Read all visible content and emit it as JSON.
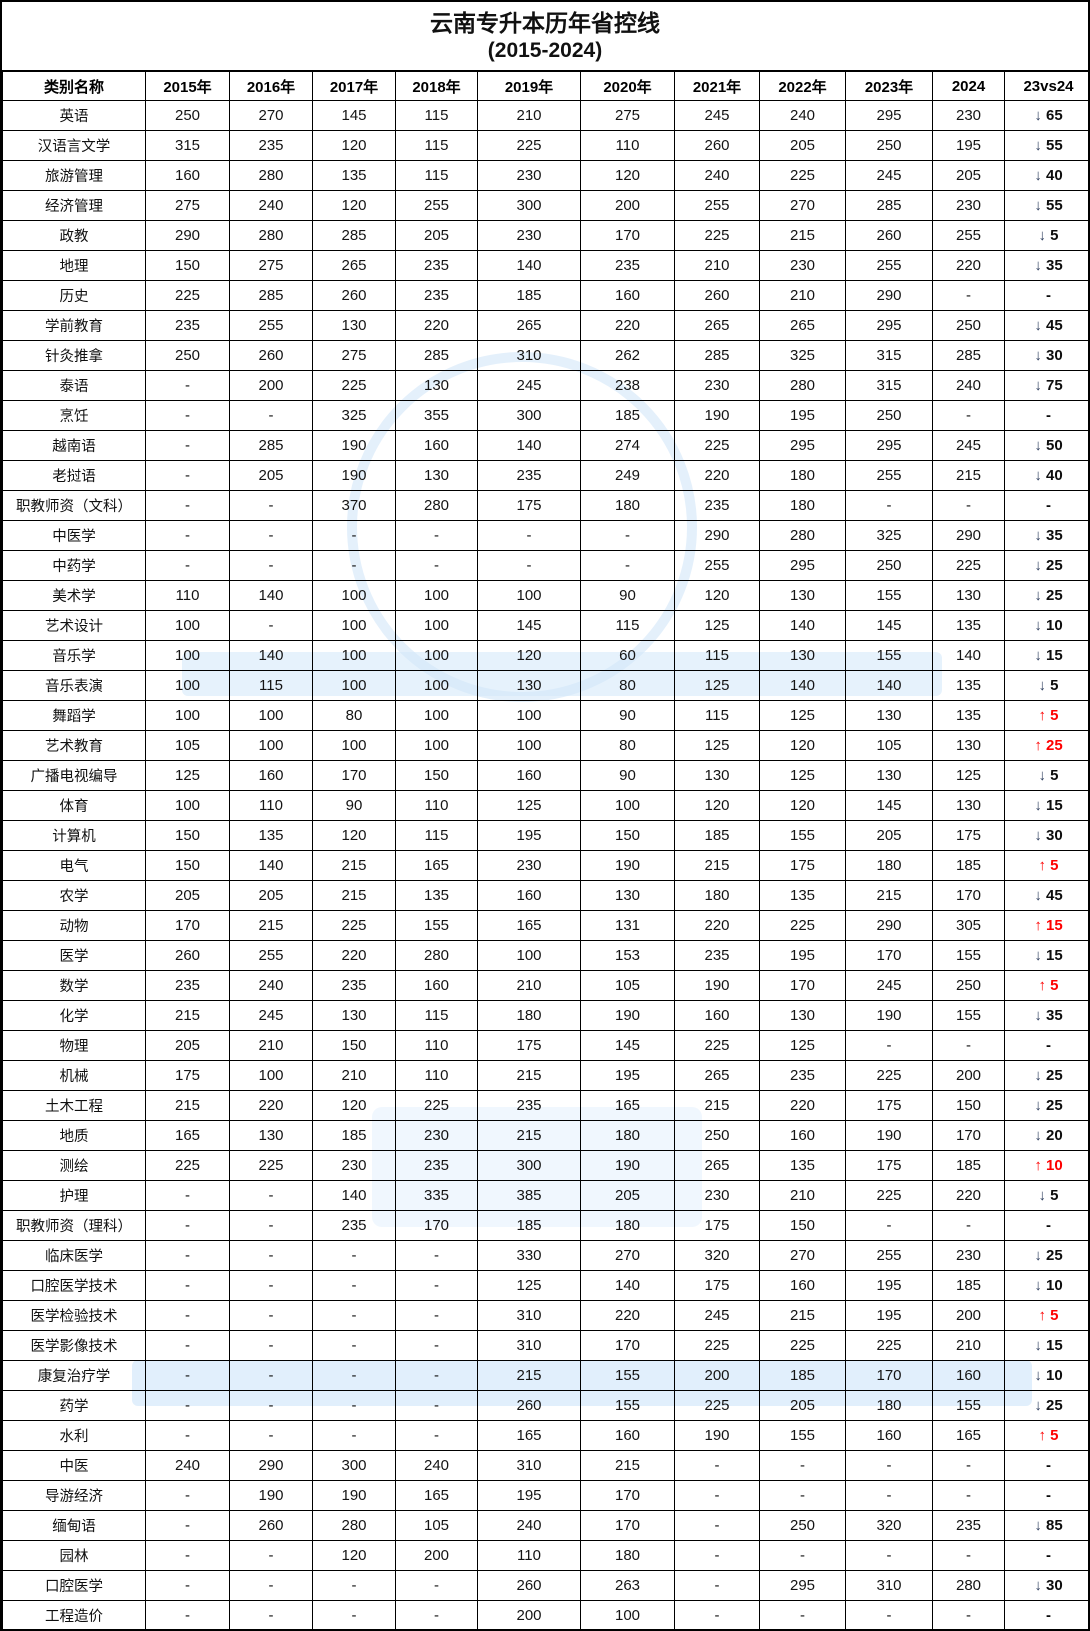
{
  "title": {
    "line1": "云南专升本历年省控线",
    "line2": "(2015-2024)"
  },
  "colors": {
    "up_red": "#fe0000",
    "text": "#141414",
    "border": "#000000",
    "watermark_blue": "#cde4f7"
  },
  "icons": {
    "up_arrow": "↑",
    "down_arrow": "↓"
  },
  "table": {
    "columns": [
      "类别名称",
      "2015年",
      "2016年",
      "2017年",
      "2018年",
      "2019年",
      "2020年",
      "2021年",
      "2022年",
      "2023年",
      "2024",
      "23vs24"
    ],
    "rows": [
      {
        "name": "英语",
        "values": [
          "250",
          "270",
          "145",
          "115",
          "210",
          "275",
          "245",
          "240",
          "295",
          "230"
        ],
        "delta": "65",
        "trend": "down"
      },
      {
        "name": "汉语言文学",
        "values": [
          "315",
          "235",
          "120",
          "115",
          "225",
          "110",
          "260",
          "205",
          "250",
          "195"
        ],
        "delta": "55",
        "trend": "down"
      },
      {
        "name": "旅游管理",
        "values": [
          "160",
          "280",
          "135",
          "115",
          "230",
          "120",
          "240",
          "225",
          "245",
          "205"
        ],
        "delta": "40",
        "trend": "down"
      },
      {
        "name": "经济管理",
        "values": [
          "275",
          "240",
          "120",
          "255",
          "300",
          "200",
          "255",
          "270",
          "285",
          "230"
        ],
        "delta": "55",
        "trend": "down"
      },
      {
        "name": "政教",
        "values": [
          "290",
          "280",
          "285",
          "205",
          "230",
          "170",
          "225",
          "215",
          "260",
          "255"
        ],
        "delta": "5",
        "trend": "down"
      },
      {
        "name": "地理",
        "values": [
          "150",
          "275",
          "265",
          "235",
          "140",
          "235",
          "210",
          "230",
          "255",
          "220"
        ],
        "delta": "35",
        "trend": "down"
      },
      {
        "name": "历史",
        "values": [
          "225",
          "285",
          "260",
          "235",
          "185",
          "160",
          "260",
          "210",
          "290",
          "-"
        ],
        "delta": "-",
        "trend": "none"
      },
      {
        "name": "学前教育",
        "values": [
          "235",
          "255",
          "130",
          "220",
          "265",
          "220",
          "265",
          "265",
          "295",
          "250"
        ],
        "delta": "45",
        "trend": "down"
      },
      {
        "name": "针灸推拿",
        "values": [
          "250",
          "260",
          "275",
          "285",
          "310",
          "262",
          "285",
          "325",
          "315",
          "285"
        ],
        "delta": "30",
        "trend": "down"
      },
      {
        "name": "泰语",
        "values": [
          "-",
          "200",
          "225",
          "130",
          "245",
          "238",
          "230",
          "280",
          "315",
          "240"
        ],
        "delta": "75",
        "trend": "down"
      },
      {
        "name": "烹饪",
        "values": [
          "-",
          "-",
          "325",
          "355",
          "300",
          "185",
          "190",
          "195",
          "250",
          "-"
        ],
        "delta": "-",
        "trend": "none"
      },
      {
        "name": "越南语",
        "values": [
          "-",
          "285",
          "190",
          "160",
          "140",
          "274",
          "225",
          "295",
          "295",
          "245"
        ],
        "delta": "50",
        "trend": "down"
      },
      {
        "name": "老挝语",
        "values": [
          "-",
          "205",
          "190",
          "130",
          "235",
          "249",
          "220",
          "180",
          "255",
          "215"
        ],
        "delta": "40",
        "trend": "down"
      },
      {
        "name": "职教师资（文科）",
        "values": [
          "-",
          "-",
          "370",
          "280",
          "175",
          "180",
          "235",
          "180",
          "-",
          "-"
        ],
        "delta": "-",
        "trend": "none"
      },
      {
        "name": "中医学",
        "values": [
          "-",
          "-",
          "-",
          "-",
          "-",
          "-",
          "290",
          "280",
          "325",
          "290"
        ],
        "delta": "35",
        "trend": "down"
      },
      {
        "name": "中药学",
        "values": [
          "-",
          "-",
          "-",
          "-",
          "-",
          "-",
          "255",
          "295",
          "250",
          "225"
        ],
        "delta": "25",
        "trend": "down"
      },
      {
        "name": "美术学",
        "values": [
          "110",
          "140",
          "100",
          "100",
          "100",
          "90",
          "120",
          "130",
          "155",
          "130"
        ],
        "delta": "25",
        "trend": "down"
      },
      {
        "name": "艺术设计",
        "values": [
          "100",
          "-",
          "100",
          "100",
          "145",
          "115",
          "125",
          "140",
          "145",
          "135"
        ],
        "delta": "10",
        "trend": "down"
      },
      {
        "name": "音乐学",
        "values": [
          "100",
          "140",
          "100",
          "100",
          "120",
          "60",
          "115",
          "130",
          "155",
          "140"
        ],
        "delta": "15",
        "trend": "down"
      },
      {
        "name": "音乐表演",
        "values": [
          "100",
          "115",
          "100",
          "100",
          "130",
          "80",
          "125",
          "140",
          "140",
          "135"
        ],
        "delta": "5",
        "trend": "down"
      },
      {
        "name": "舞蹈学",
        "values": [
          "100",
          "100",
          "80",
          "100",
          "100",
          "90",
          "115",
          "125",
          "130",
          "135"
        ],
        "delta": "5",
        "trend": "up"
      },
      {
        "name": "艺术教育",
        "values": [
          "105",
          "100",
          "100",
          "100",
          "100",
          "80",
          "125",
          "120",
          "105",
          "130"
        ],
        "delta": "25",
        "trend": "up"
      },
      {
        "name": "广播电视编导",
        "values": [
          "125",
          "160",
          "170",
          "150",
          "160",
          "90",
          "130",
          "125",
          "130",
          "125"
        ],
        "delta": "5",
        "trend": "down"
      },
      {
        "name": "体育",
        "values": [
          "100",
          "110",
          "90",
          "110",
          "125",
          "100",
          "120",
          "120",
          "145",
          "130"
        ],
        "delta": "15",
        "trend": "down"
      },
      {
        "name": "计算机",
        "values": [
          "150",
          "135",
          "120",
          "115",
          "195",
          "150",
          "185",
          "155",
          "205",
          "175"
        ],
        "delta": "30",
        "trend": "down"
      },
      {
        "name": "电气",
        "values": [
          "150",
          "140",
          "215",
          "165",
          "230",
          "190",
          "215",
          "175",
          "180",
          "185"
        ],
        "delta": "5",
        "trend": "up"
      },
      {
        "name": "农学",
        "values": [
          "205",
          "205",
          "215",
          "135",
          "160",
          "130",
          "180",
          "135",
          "215",
          "170"
        ],
        "delta": "45",
        "trend": "down"
      },
      {
        "name": "动物",
        "values": [
          "170",
          "215",
          "225",
          "155",
          "165",
          "131",
          "220",
          "225",
          "290",
          "305"
        ],
        "delta": "15",
        "trend": "up"
      },
      {
        "name": "医学",
        "values": [
          "260",
          "255",
          "220",
          "280",
          "100",
          "153",
          "235",
          "195",
          "170",
          "155"
        ],
        "delta": "15",
        "trend": "down"
      },
      {
        "name": "数学",
        "values": [
          "235",
          "240",
          "235",
          "160",
          "210",
          "105",
          "190",
          "170",
          "245",
          "250"
        ],
        "delta": "5",
        "trend": "up"
      },
      {
        "name": "化学",
        "values": [
          "215",
          "245",
          "130",
          "115",
          "180",
          "190",
          "160",
          "130",
          "190",
          "155"
        ],
        "delta": "35",
        "trend": "down"
      },
      {
        "name": "物理",
        "values": [
          "205",
          "210",
          "150",
          "110",
          "175",
          "145",
          "225",
          "125",
          "-",
          "-"
        ],
        "delta": "-",
        "trend": "none"
      },
      {
        "name": "机械",
        "values": [
          "175",
          "100",
          "210",
          "110",
          "215",
          "195",
          "265",
          "235",
          "225",
          "200"
        ],
        "delta": "25",
        "trend": "down"
      },
      {
        "name": "土木工程",
        "values": [
          "215",
          "220",
          "120",
          "225",
          "235",
          "165",
          "215",
          "220",
          "175",
          "150"
        ],
        "delta": "25",
        "trend": "down"
      },
      {
        "name": "地质",
        "values": [
          "165",
          "130",
          "185",
          "230",
          "215",
          "180",
          "250",
          "160",
          "190",
          "170"
        ],
        "delta": "20",
        "trend": "down"
      },
      {
        "name": "测绘",
        "values": [
          "225",
          "225",
          "230",
          "235",
          "300",
          "190",
          "265",
          "135",
          "175",
          "185"
        ],
        "delta": "10",
        "trend": "up"
      },
      {
        "name": "护理",
        "values": [
          "-",
          "-",
          "140",
          "335",
          "385",
          "205",
          "230",
          "210",
          "225",
          "220"
        ],
        "delta": "5",
        "trend": "down"
      },
      {
        "name": "职教师资（理科）",
        "values": [
          "-",
          "-",
          "235",
          "170",
          "185",
          "180",
          "175",
          "150",
          "-",
          "-"
        ],
        "delta": "-",
        "trend": "none"
      },
      {
        "name": "临床医学",
        "values": [
          "-",
          "-",
          "-",
          "-",
          "330",
          "270",
          "320",
          "270",
          "255",
          "230"
        ],
        "delta": "25",
        "trend": "down"
      },
      {
        "name": "口腔医学技术",
        "values": [
          "-",
          "-",
          "-",
          "-",
          "125",
          "140",
          "175",
          "160",
          "195",
          "185"
        ],
        "delta": "10",
        "trend": "down"
      },
      {
        "name": "医学检验技术",
        "values": [
          "-",
          "-",
          "-",
          "-",
          "310",
          "220",
          "245",
          "215",
          "195",
          "200"
        ],
        "delta": "5",
        "trend": "up"
      },
      {
        "name": "医学影像技术",
        "values": [
          "-",
          "-",
          "-",
          "-",
          "310",
          "170",
          "225",
          "225",
          "225",
          "210"
        ],
        "delta": "15",
        "trend": "down"
      },
      {
        "name": "康复治疗学",
        "values": [
          "-",
          "-",
          "-",
          "-",
          "215",
          "155",
          "200",
          "185",
          "170",
          "160"
        ],
        "delta": "10",
        "trend": "down"
      },
      {
        "name": "药学",
        "values": [
          "-",
          "-",
          "-",
          "-",
          "260",
          "155",
          "225",
          "205",
          "180",
          "155"
        ],
        "delta": "25",
        "trend": "down"
      },
      {
        "name": "水利",
        "values": [
          "-",
          "-",
          "-",
          "-",
          "165",
          "160",
          "190",
          "155",
          "160",
          "165"
        ],
        "delta": "5",
        "trend": "up"
      },
      {
        "name": "中医",
        "values": [
          "240",
          "290",
          "300",
          "240",
          "310",
          "215",
          "-",
          "-",
          "-",
          "-"
        ],
        "delta": "-",
        "trend": "none"
      },
      {
        "name": "导游经济",
        "values": [
          "-",
          "190",
          "190",
          "165",
          "195",
          "170",
          "-",
          "-",
          "-",
          "-"
        ],
        "delta": "-",
        "trend": "none"
      },
      {
        "name": "缅甸语",
        "values": [
          "-",
          "260",
          "280",
          "105",
          "240",
          "170",
          "-",
          "250",
          "320",
          "235"
        ],
        "delta": "85",
        "trend": "down"
      },
      {
        "name": "园林",
        "values": [
          "-",
          "-",
          "120",
          "200",
          "110",
          "180",
          "-",
          "-",
          "-",
          "-"
        ],
        "delta": "-",
        "trend": "none"
      },
      {
        "name": "口腔医学",
        "values": [
          "-",
          "-",
          "-",
          "-",
          "260",
          "263",
          "-",
          "295",
          "310",
          "280"
        ],
        "delta": "30",
        "trend": "down"
      },
      {
        "name": "工程造价",
        "values": [
          "-",
          "-",
          "-",
          "-",
          "200",
          "100",
          "-",
          "-",
          "-",
          "-"
        ],
        "delta": "-",
        "trend": "none"
      }
    ]
  }
}
